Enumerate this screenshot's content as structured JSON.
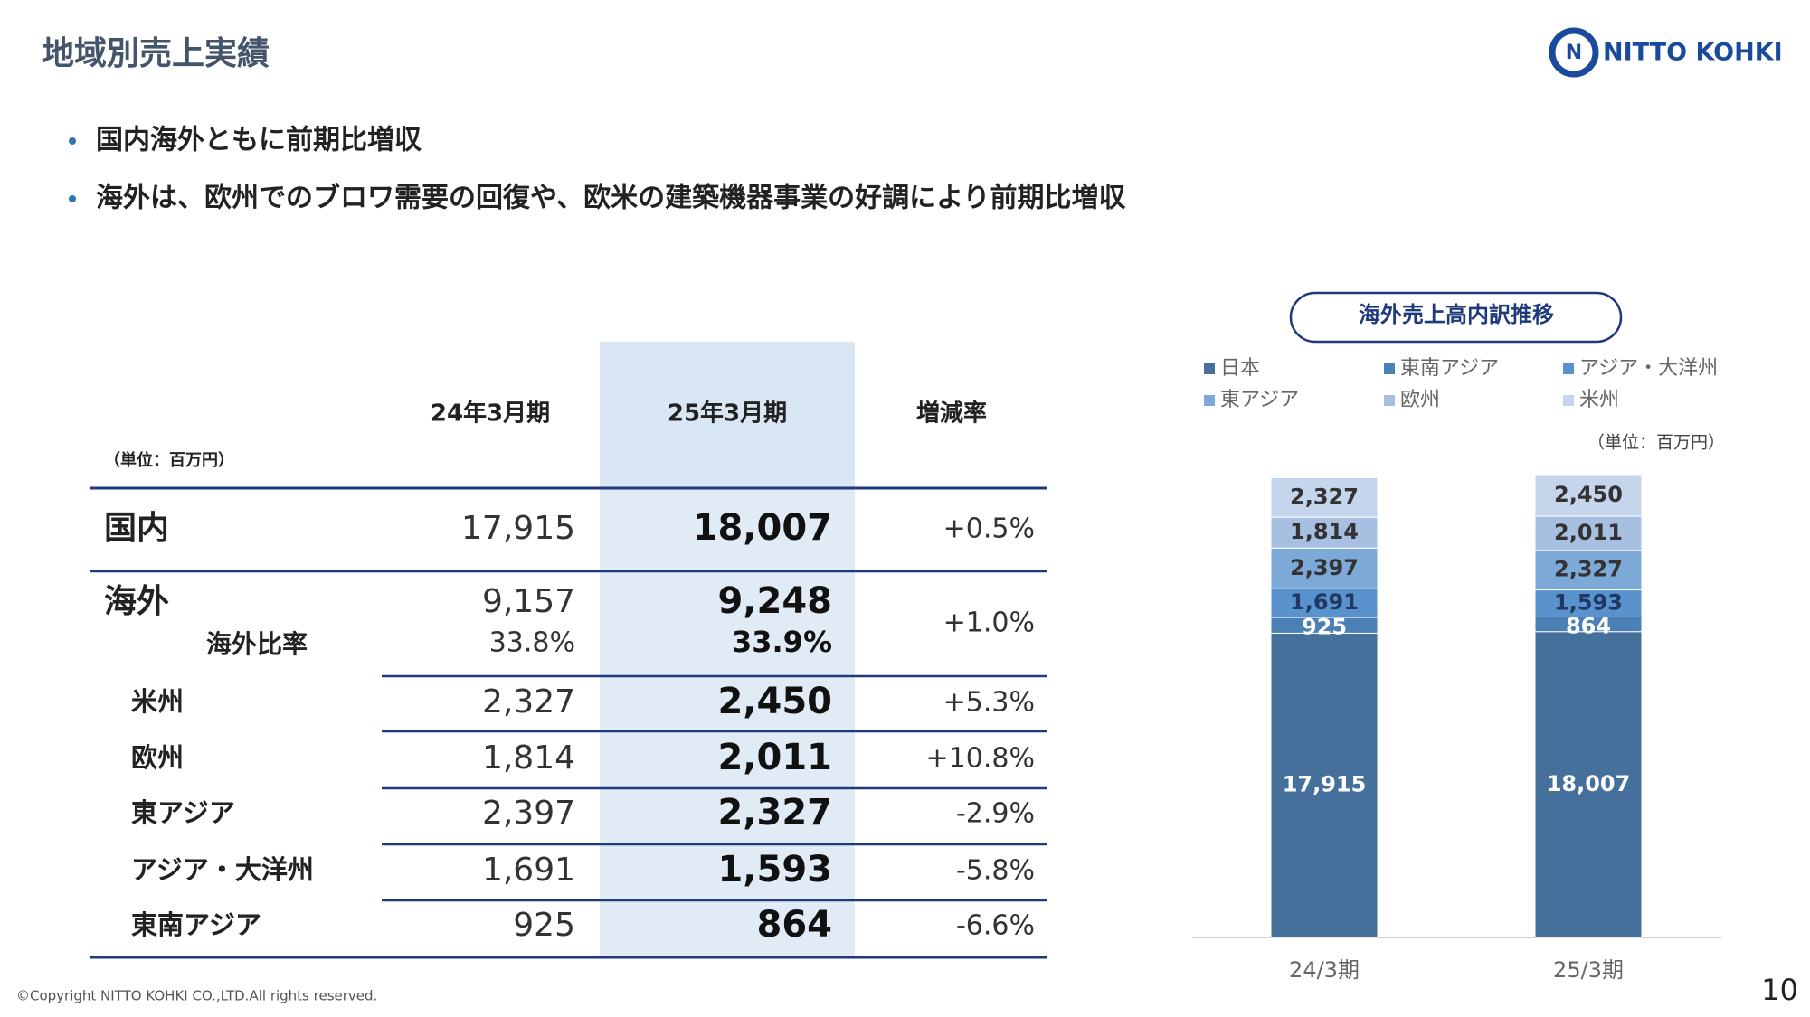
{
  "header": {
    "title": "地域別売上実績",
    "logo": "NITTO KOHKI"
  },
  "bullets": [
    "国内海外ともに前期比増収",
    "海外は、欧州でのブロワ需要の回復や、欧米の建築機器事業の好調により前期比増収"
  ],
  "table": {
    "unit": "（単位：百万円）",
    "columns": [
      "24年3月期",
      "25年3月期",
      "増減率"
    ],
    "rows": [
      {
        "label": "国内",
        "values": [
          "17,915",
          "18,007",
          "+0.5%"
        ]
      },
      {
        "label": "海外",
        "values": [
          "9,157",
          "9,248",
          "+1.0%"
        ],
        "sub": {
          "label": "海外比率",
          "values": [
            "33.8%",
            "33.9%"
          ]
        }
      },
      {
        "label": "米州",
        "values": [
          "2,327",
          "2,450",
          "+5.3%"
        ]
      },
      {
        "label": "欧州",
        "values": [
          "1,814",
          "2,011",
          "+10.8%"
        ]
      },
      {
        "label": "東アジア",
        "values": [
          "2,397",
          "2,327",
          "-2.9%"
        ]
      },
      {
        "label": "アジア・大洋州",
        "values": [
          "1,691",
          "1,593",
          "-5.8%"
        ]
      },
      {
        "label": "東南アジア",
        "values": [
          "925",
          "864",
          "-6.6%"
        ]
      }
    ]
  },
  "chart_data": {
    "type": "stacked_bar",
    "title": "海外売上高内訳推移",
    "unit": "（単位：百万円）",
    "categories": [
      "24/3期",
      "25/3期"
    ],
    "series": [
      {
        "name": "日本",
        "color": "#44709b",
        "values": [
          17915,
          18007
        ],
        "value_labels": [
          "17,915",
          "18,007"
        ]
      },
      {
        "name": "東南アジア",
        "color": "#4b80b7",
        "values": [
          925,
          864
        ],
        "value_labels": [
          "925",
          "864"
        ]
      },
      {
        "name": "アジア・大洋州",
        "color": "#5a92cd",
        "values": [
          1691,
          1593
        ],
        "value_labels": [
          "1,691",
          "1,593"
        ]
      },
      {
        "name": "東アジア",
        "color": "#7da9d9",
        "values": [
          2397,
          2327
        ],
        "value_labels": [
          "2,397",
          "2,327"
        ]
      },
      {
        "name": "欧州",
        "color": "#a7c0e2",
        "values": [
          1814,
          2011
        ],
        "value_labels": [
          "1,814",
          "2,011"
        ]
      },
      {
        "name": "米州",
        "color": "#c5d5ec",
        "values": [
          2327,
          2450
        ],
        "value_labels": [
          "2,327",
          "2,450"
        ]
      }
    ]
  },
  "footer": {
    "copyright": "©Copyright NITTO KOHKI CO.,LTD.All rights reserved.",
    "page": "10"
  }
}
